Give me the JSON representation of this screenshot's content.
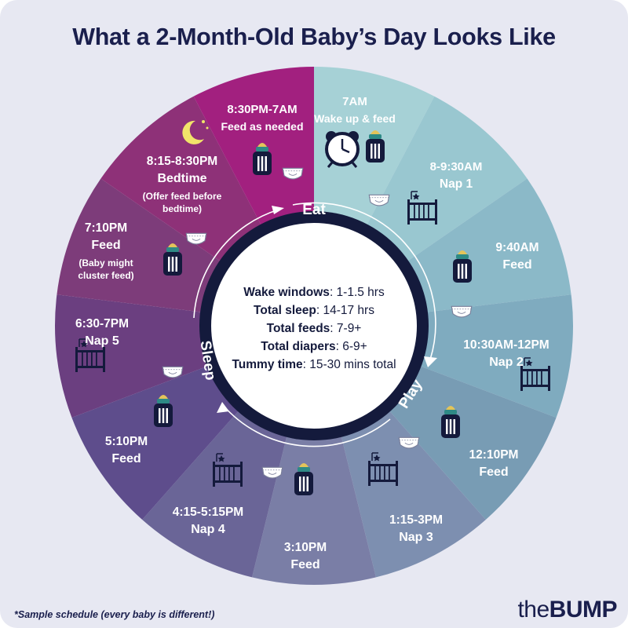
{
  "title": "What a 2-Month-Old Baby’s Day Looks Like",
  "segments": [
    {
      "time": "7AM",
      "label": "Wake up & feed",
      "note": "",
      "color": "#a6d1d6",
      "icons": [
        "alarm-clock",
        "bottle"
      ]
    },
    {
      "time": "8-9:30AM",
      "label": "Nap 1",
      "note": "",
      "color": "#99c7d0",
      "icons": [
        "diaper",
        "crib"
      ]
    },
    {
      "time": "9:40AM",
      "label": "Feed",
      "note": "",
      "color": "#8bb9c8",
      "icons": [
        "bottle",
        "diaper"
      ]
    },
    {
      "time": "10:30AM-12PM",
      "label": "Nap 2",
      "note": "",
      "color": "#7fabbf",
      "icons": [
        "crib"
      ]
    },
    {
      "time": "12:10PM",
      "label": "Feed",
      "note": "",
      "color": "#789cb4",
      "icons": [
        "bottle",
        "diaper"
      ]
    },
    {
      "time": "1:15-3PM",
      "label": "Nap 3",
      "note": "",
      "color": "#7d8fb0",
      "icons": [
        "crib"
      ]
    },
    {
      "time": "3:10PM",
      "label": "Feed",
      "note": "",
      "color": "#7a7ea6",
      "icons": [
        "bottle",
        "diaper"
      ]
    },
    {
      "time": "4:15-5:15PM",
      "label": "Nap 4",
      "note": "",
      "color": "#6a6597",
      "icons": [
        "crib"
      ]
    },
    {
      "time": "5:10PM",
      "label": "Feed",
      "note": "",
      "color": "#5e4d8c",
      "icons": [
        "bottle"
      ]
    },
    {
      "time": "6:30-7PM",
      "label": "Nap 5",
      "note": "",
      "color": "#6b3f80",
      "icons": [
        "diaper",
        "crib"
      ]
    },
    {
      "time": "7:10PM",
      "label": "Feed",
      "note": "(Baby might cluster feed)",
      "color": "#7d3c7a",
      "icons": [
        "bottle",
        "diaper"
      ]
    },
    {
      "time": "8:15-8:30PM",
      "label": "Bedtime",
      "note": "(Offer feed before bedtime)",
      "color": "#8e3178",
      "icons": [
        "moon"
      ]
    },
    {
      "time": "8:30PM-7AM",
      "label": "Feed as needed",
      "note": "",
      "color": "#a2207f",
      "icons": [
        "bottle",
        "diaper"
      ]
    }
  ],
  "cycle_labels": {
    "eat": "Eat",
    "play": "Play",
    "sleep": "Sleep"
  },
  "stats": [
    {
      "label": "Wake windows",
      "value": ": 1-1.5 hrs"
    },
    {
      "label": "Total sleep",
      "value": ": 14-17 hrs"
    },
    {
      "label": "Total feeds",
      "value": ": 7-9+"
    },
    {
      "label": "Total diapers",
      "value": ": 6-9+"
    },
    {
      "label": "Tummy time",
      "value": ": 15-30 mins total"
    }
  ],
  "footnote": "*Sample schedule (every baby is different!)",
  "brand": {
    "prefix": "the",
    "name": "BUMP"
  },
  "colors": {
    "ring": "#141a3c",
    "title": "#1a1f4d",
    "background": "#e7e8f2"
  }
}
